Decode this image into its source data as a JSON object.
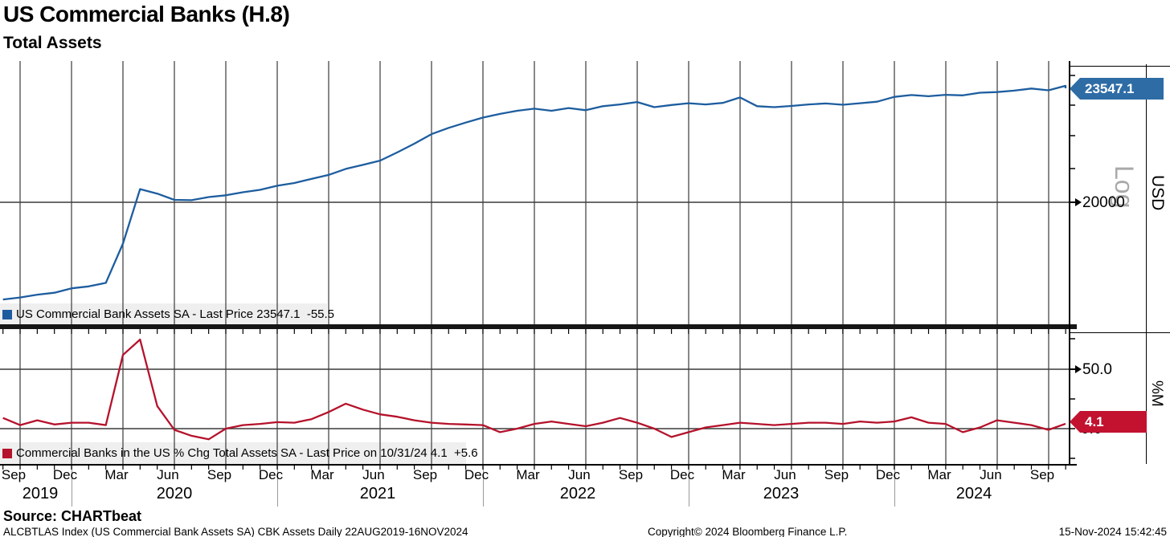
{
  "title": "US Commercial Banks (H.8)",
  "subtitle": "Total Assets",
  "colors": {
    "blue_line": "#1d5d9f",
    "blue_tag_bg": "#2e6ca5",
    "red_line": "#b5122b",
    "red_tag_bg": "#c2122f",
    "legend_bg": "#efefef",
    "grid": "#3a3a3a",
    "log_watermark": "#a9a9a9"
  },
  "top_panel": {
    "legend_label": "US Commercial Bank Assets SA - Last Price 23547.1  -55.5",
    "axis": {
      "tick_label": "20000",
      "price_tag": "23547.1",
      "scale_label": "Log",
      "unit_label": "USD"
    }
  },
  "bottom_panel": {
    "legend_label": "Commercial Banks in the US % Chg Total Assets SA - Last Price on 10/31/24 4.1  +5.6",
    "axis": {
      "tick_label_upper": "50.0",
      "tick_label_zero": "0.0",
      "price_tag": "4.1",
      "unit_label": "%M"
    }
  },
  "x_axis": {
    "month_labels": [
      "Sep",
      "Dec",
      "Mar",
      "Jun",
      "Sep",
      "Dec",
      "Mar",
      "Jun",
      "Sep",
      "Dec",
      "Mar",
      "Jun",
      "Sep",
      "Dec",
      "Mar",
      "Jun",
      "Sep",
      "Dec",
      "Mar",
      "Jun",
      "Sep"
    ],
    "year_labels": [
      "2019",
      "2020",
      "2021",
      "2022",
      "2023",
      "2024"
    ]
  },
  "footer": {
    "source": "Source:  CHARTbeat",
    "meta": "ALCBTLAS Index (US Commercial Bank Assets SA) CBK Assets   Daily 22AUG2019-16NOV2024",
    "copyright": "Copyright© 2024 Bloomberg Finance L.P.",
    "timestamp": "15-Nov-2024 15:42:45"
  },
  "chart_data": [
    {
      "type": "line",
      "title": "US Commercial Bank Assets SA",
      "ylabel": "USD",
      "y_scale": "log",
      "last_price": 23547.1,
      "last_change": -55.5,
      "ref_tick": 20000,
      "ylim_approx": [
        17000,
        24200
      ],
      "frequency": "monthly",
      "x_start": "2019-08",
      "x_end": "2024-11",
      "x": [
        "2019-08",
        "2019-09",
        "2019-10",
        "2019-11",
        "2019-12",
        "2020-01",
        "2020-02",
        "2020-03",
        "2020-04",
        "2020-05",
        "2020-06",
        "2020-07",
        "2020-08",
        "2020-09",
        "2020-10",
        "2020-11",
        "2020-12",
        "2021-01",
        "2021-02",
        "2021-03",
        "2021-04",
        "2021-05",
        "2021-06",
        "2021-07",
        "2021-08",
        "2021-09",
        "2021-10",
        "2021-11",
        "2021-12",
        "2022-01",
        "2022-02",
        "2022-03",
        "2022-04",
        "2022-05",
        "2022-06",
        "2022-07",
        "2022-08",
        "2022-09",
        "2022-10",
        "2022-11",
        "2022-12",
        "2023-01",
        "2023-02",
        "2023-03",
        "2023-04",
        "2023-05",
        "2023-06",
        "2023-07",
        "2023-08",
        "2023-09",
        "2023-10",
        "2023-11",
        "2023-12",
        "2024-01",
        "2024-02",
        "2024-03",
        "2024-04",
        "2024-05",
        "2024-06",
        "2024-07",
        "2024-08",
        "2024-09",
        "2024-10",
        "2024-11"
      ],
      "values": [
        17400,
        17450,
        17520,
        17570,
        17680,
        17730,
        17820,
        18850,
        20380,
        20250,
        20070,
        20060,
        20150,
        20200,
        20290,
        20360,
        20480,
        20560,
        20680,
        20800,
        20980,
        21100,
        21230,
        21480,
        21750,
        22050,
        22250,
        22420,
        22580,
        22700,
        22800,
        22870,
        22800,
        22890,
        22820,
        22950,
        23010,
        23090,
        22920,
        22990,
        23050,
        23010,
        23060,
        23240,
        22950,
        22920,
        22960,
        23010,
        23040,
        23000,
        23050,
        23100,
        23260,
        23320,
        23280,
        23330,
        23310,
        23400,
        23420,
        23470,
        23540,
        23480,
        23630,
        23547.1
      ]
    },
    {
      "type": "line",
      "title": "Commercial Banks in the US % Chg Total Assets SA",
      "ylabel": "%M",
      "y_scale": "linear",
      "last_price": 4.1,
      "last_change": 5.6,
      "last_date": "10/31/24",
      "yticks": [
        -25,
        0,
        25,
        50,
        75
      ],
      "ylim_approx": [
        -30,
        84
      ],
      "frequency": "monthly",
      "x_start": "2019-08",
      "x_end": "2024-10",
      "x": [
        "2019-08",
        "2019-09",
        "2019-10",
        "2019-11",
        "2019-12",
        "2020-01",
        "2020-02",
        "2020-03",
        "2020-04",
        "2020-05",
        "2020-06",
        "2020-07",
        "2020-08",
        "2020-09",
        "2020-10",
        "2020-11",
        "2020-12",
        "2021-01",
        "2021-02",
        "2021-03",
        "2021-04",
        "2021-05",
        "2021-06",
        "2021-07",
        "2021-08",
        "2021-09",
        "2021-10",
        "2021-11",
        "2021-12",
        "2022-01",
        "2022-02",
        "2022-03",
        "2022-04",
        "2022-05",
        "2022-06",
        "2022-07",
        "2022-08",
        "2022-09",
        "2022-10",
        "2022-11",
        "2022-12",
        "2023-01",
        "2023-02",
        "2023-03",
        "2023-04",
        "2023-05",
        "2023-06",
        "2023-07",
        "2023-08",
        "2023-09",
        "2023-10",
        "2023-11",
        "2023-12",
        "2024-01",
        "2024-02",
        "2024-03",
        "2024-04",
        "2024-05",
        "2024-06",
        "2024-07",
        "2024-08",
        "2024-09",
        "2024-10"
      ],
      "values": [
        9,
        3,
        7,
        3.5,
        5,
        5,
        3,
        62,
        75,
        19,
        -1,
        -6,
        -9,
        0,
        3,
        4,
        5.5,
        5,
        8,
        14,
        21,
        16,
        12,
        10,
        7,
        5,
        4,
        3.5,
        3,
        -3,
        0,
        4,
        6,
        4,
        2,
        5,
        9,
        5,
        0,
        -7,
        -3,
        1,
        3,
        5,
        4,
        3,
        4,
        5,
        5,
        4,
        6,
        5,
        6,
        9.5,
        5,
        4,
        -3,
        1,
        7,
        5,
        3,
        -1,
        4.1
      ]
    }
  ]
}
